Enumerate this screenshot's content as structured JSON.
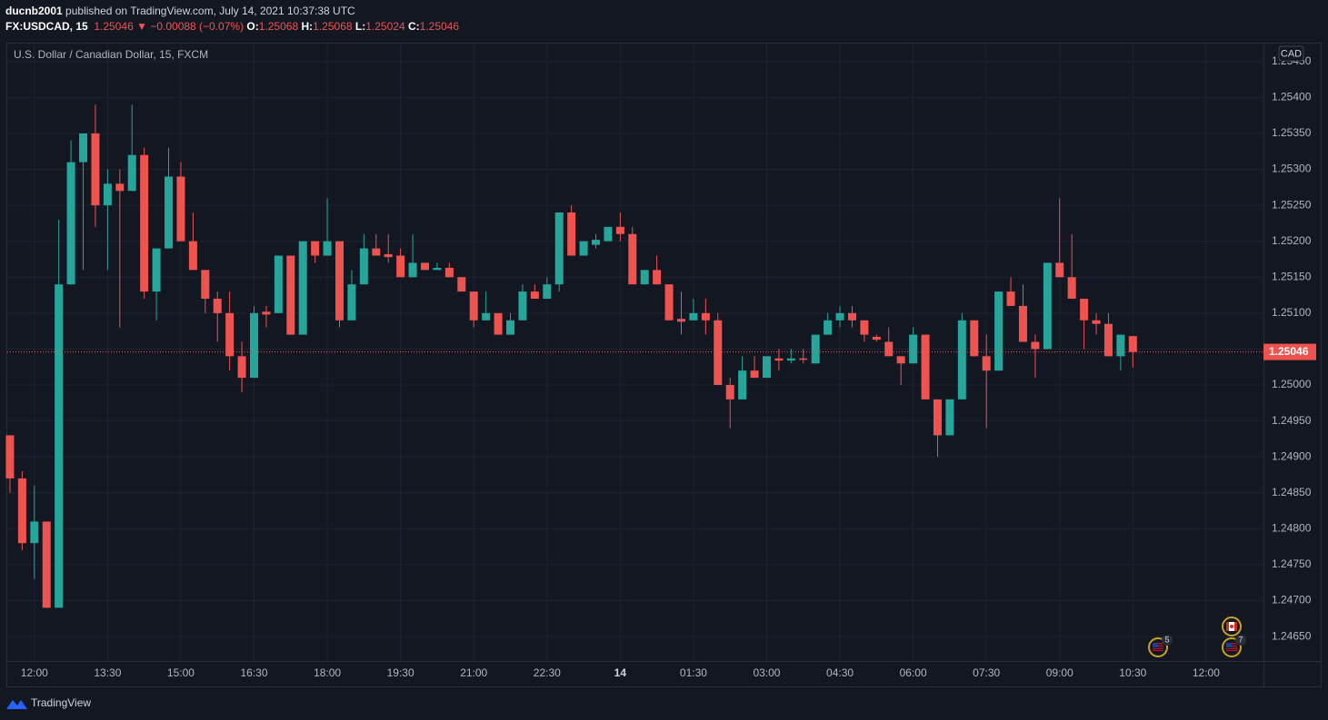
{
  "header": {
    "author": "ducnb2001",
    "published": "published on TradingView.com, July 14, 2021 10:37:38 UTC",
    "symbol": "FX:USDCAD, 15",
    "arrow": "▼",
    "change": "−0.00088 (−0.07%)",
    "o": "O:",
    "h": "H:",
    "l": "L:",
    "c": "C:"
  },
  "footer": {
    "brand": "TradingView"
  },
  "chart_data": {
    "type": "candlestick",
    "title": "U.S. Dollar / Canadian Dollar, 15, FXCM",
    "y_unit": "CAD",
    "up_color": "#26a69a",
    "down_color": "#ef5350",
    "grid": true,
    "x": [
      0,
      1,
      2,
      3,
      4,
      5,
      6,
      7,
      8,
      9,
      10,
      11,
      12,
      13,
      14,
      15,
      16,
      17,
      18,
      19,
      20,
      21,
      22,
      23,
      24,
      25,
      26,
      27,
      28,
      29,
      30,
      31,
      32,
      33,
      34,
      35,
      36,
      37,
      38,
      39,
      40,
      41,
      42,
      43,
      44,
      45,
      46,
      47,
      48,
      49,
      50,
      51,
      52,
      53,
      54,
      55,
      56,
      57,
      58,
      59,
      60,
      61,
      62,
      63,
      64,
      65,
      66,
      67,
      68,
      69,
      70,
      71,
      72,
      73,
      74,
      75,
      76,
      77,
      78,
      79,
      80,
      81,
      82,
      83,
      84,
      85,
      86,
      87,
      88,
      89,
      90,
      91,
      92
    ],
    "open": [
      1.2493,
      1.2487,
      1.2478,
      1.2481,
      1.2469,
      1.2514,
      1.2531,
      1.2535,
      1.2525,
      1.2528,
      1.2527,
      1.2532,
      1.2513,
      1.2519,
      1.2529,
      1.252,
      1.2516,
      1.2512,
      1.251,
      1.2504,
      1.2501,
      1.25102,
      1.251,
      1.2518,
      1.2507,
      1.252,
      1.2518,
      1.252,
      1.2509,
      1.2514,
      1.2519,
      1.25182,
      1.2518,
      1.2515,
      1.2517,
      1.2516,
      1.25163,
      1.2515,
      1.2513,
      1.2509,
      1.251,
      1.2507,
      1.2509,
      1.2513,
      1.2512,
      1.2514,
      1.2524,
      1.2518,
      1.25195,
      1.252,
      1.2522,
      1.2521,
      1.2514,
      1.2516,
      1.2514,
      1.25092,
      1.2509,
      1.251,
      1.2509,
      1.25,
      1.2498,
      1.2502,
      1.2501,
      1.25037,
      1.25034,
      1.25037,
      1.2503,
      1.2507,
      1.2509,
      1.251,
      1.2509,
      1.25067,
      1.2506,
      1.2504,
      1.2503,
      1.2507,
      1.2498,
      1.2493,
      1.2498,
      1.2509,
      1.2504,
      1.2502,
      1.2513,
      1.2511,
      1.2506,
      1.2505,
      1.2517,
      1.2515,
      1.2512,
      1.2509,
      1.25085,
      1.2504,
      1.25068
    ],
    "high": [
      1.2493,
      1.2488,
      1.2486,
      1.2481,
      1.2523,
      1.2534,
      1.2535,
      1.2539,
      1.253,
      1.253,
      1.2539,
      1.2533,
      1.2519,
      1.2533,
      1.2531,
      1.2524,
      1.2516,
      1.2513,
      1.2513,
      1.2506,
      1.2511,
      1.2511,
      1.2518,
      1.2518,
      1.252,
      1.252,
      1.2526,
      1.252,
      1.2516,
      1.2521,
      1.2521,
      1.2521,
      1.2519,
      1.2521,
      1.2517,
      1.2517,
      1.2517,
      1.2515,
      1.2513,
      1.2513,
      1.251,
      1.251,
      1.2514,
      1.2514,
      1.2515,
      1.2524,
      1.2525,
      1.252,
      1.2521,
      1.2522,
      1.2524,
      1.2522,
      1.2516,
      1.2518,
      1.2514,
      1.2513,
      1.2512,
      1.2512,
      1.251,
      1.2501,
      1.2504,
      1.2504,
      1.2504,
      1.2505,
      1.2505,
      1.2505,
      1.2507,
      1.251,
      1.2511,
      1.2511,
      1.2509,
      1.2507,
      1.2508,
      1.2504,
      1.2508,
      1.2507,
      1.2498,
      1.2498,
      1.251,
      1.2509,
      1.2507,
      1.2513,
      1.2515,
      1.2514,
      1.2507,
      1.2517,
      1.2526,
      1.2521,
      1.2512,
      1.251,
      1.251,
      1.2507,
      1.25068
    ],
    "low": [
      1.2485,
      1.2477,
      1.2473,
      1.2469,
      1.2469,
      1.2514,
      1.2516,
      1.2522,
      1.2516,
      1.2508,
      1.2527,
      1.2512,
      1.2509,
      1.2519,
      1.252,
      1.2516,
      1.251,
      1.2506,
      1.2502,
      1.2499,
      1.2501,
      1.2508,
      1.251,
      1.2507,
      1.2507,
      1.2517,
      1.2518,
      1.2508,
      1.2509,
      1.2514,
      1.2518,
      1.2517,
      1.2515,
      1.2515,
      1.2516,
      1.2516,
      1.2515,
      1.2513,
      1.2508,
      1.2509,
      1.2507,
      1.2507,
      1.2509,
      1.2512,
      1.2512,
      1.2513,
      1.2518,
      1.2518,
      1.2519,
      1.252,
      1.252,
      1.2514,
      1.2514,
      1.2514,
      1.2509,
      1.2507,
      1.2509,
      1.2507,
      1.25,
      1.2494,
      1.2498,
      1.2501,
      1.2501,
      1.2502,
      1.2503,
      1.2503,
      1.2503,
      1.2507,
      1.2508,
      1.2508,
      1.2506,
      1.2506,
      1.2504,
      1.25,
      1.2503,
      1.2498,
      1.249,
      1.2493,
      1.2498,
      1.2504,
      1.2494,
      1.2502,
      1.2511,
      1.2506,
      1.2501,
      1.2505,
      1.2515,
      1.2512,
      1.2505,
      1.2507,
      1.2504,
      1.2502,
      1.25024
    ],
    "close": [
      1.2487,
      1.2478,
      1.2481,
      1.2469,
      1.2514,
      1.2531,
      1.2535,
      1.2525,
      1.2528,
      1.2527,
      1.2532,
      1.2513,
      1.2519,
      1.2529,
      1.252,
      1.2516,
      1.2512,
      1.251,
      1.2504,
      1.2501,
      1.251,
      1.25098,
      1.2518,
      1.2507,
      1.252,
      1.2518,
      1.252,
      1.2509,
      1.2514,
      1.2519,
      1.2518,
      1.25178,
      1.2515,
      1.2517,
      1.2516,
      1.25163,
      1.2515,
      1.2513,
      1.2509,
      1.251,
      1.2507,
      1.2509,
      1.2513,
      1.2512,
      1.2514,
      1.2524,
      1.2518,
      1.252,
      1.25202,
      1.2522,
      1.2521,
      1.2514,
      1.2516,
      1.2514,
      1.2509,
      1.25088,
      1.251,
      1.2509,
      1.25,
      1.2498,
      1.2502,
      1.2501,
      1.2504,
      1.25034,
      1.25037,
      1.25035,
      1.2507,
      1.2509,
      1.251,
      1.2509,
      1.2507,
      1.25063,
      1.2504,
      1.2503,
      1.2507,
      1.2498,
      1.2493,
      1.2498,
      1.2509,
      1.2504,
      1.2502,
      1.2513,
      1.2511,
      1.2506,
      1.2505,
      1.2517,
      1.2515,
      1.2512,
      1.2509,
      1.25085,
      1.2504,
      1.2507,
      1.25046
    ],
    "ylim": [
      1.24616,
      1.25475
    ],
    "yticks": [
      {
        "value": 1.2545,
        "label": "1.25450"
      },
      {
        "value": 1.254,
        "label": "1.25400"
      },
      {
        "value": 1.2535,
        "label": "1.25350"
      },
      {
        "value": 1.253,
        "label": "1.25300"
      },
      {
        "value": 1.2525,
        "label": "1.25250"
      },
      {
        "value": 1.252,
        "label": "1.25200"
      },
      {
        "value": 1.2515,
        "label": "1.25150"
      },
      {
        "value": 1.251,
        "label": "1.25100"
      },
      {
        "value": 1.2505,
        "label": "1.25050"
      },
      {
        "value": 1.25,
        "label": "1.25000"
      },
      {
        "value": 1.2495,
        "label": "1.24950"
      },
      {
        "value": 1.249,
        "label": "1.24900"
      },
      {
        "value": 1.2485,
        "label": "1.24850"
      },
      {
        "value": 1.248,
        "label": "1.24800"
      },
      {
        "value": 1.2475,
        "label": "1.24750"
      },
      {
        "value": 1.247,
        "label": "1.24700"
      },
      {
        "value": 1.2465,
        "label": "1.24650"
      }
    ],
    "xlim": [
      -0.22,
      102.7
    ],
    "xticks": [
      {
        "value": 2,
        "label": "12:00"
      },
      {
        "value": 8,
        "label": "13:30"
      },
      {
        "value": 14,
        "label": "15:00"
      },
      {
        "value": 20,
        "label": "16:30"
      },
      {
        "value": 26,
        "label": "18:00"
      },
      {
        "value": 32,
        "label": "19:30"
      },
      {
        "value": 38,
        "label": "21:00"
      },
      {
        "value": 44,
        "label": "22:30"
      },
      {
        "value": 50,
        "label": "14"
      },
      {
        "value": 56,
        "label": "01:30"
      },
      {
        "value": 62,
        "label": "03:00"
      },
      {
        "value": 68,
        "label": "04:30"
      },
      {
        "value": 74,
        "label": "06:00"
      },
      {
        "value": 80,
        "label": "07:30"
      },
      {
        "value": 86,
        "label": "09:00"
      },
      {
        "value": 92,
        "label": "10:30"
      },
      {
        "value": 98,
        "label": "12:00"
      }
    ],
    "events": [
      {
        "count": "5"
      },
      {
        "count": "7"
      }
    ]
  }
}
